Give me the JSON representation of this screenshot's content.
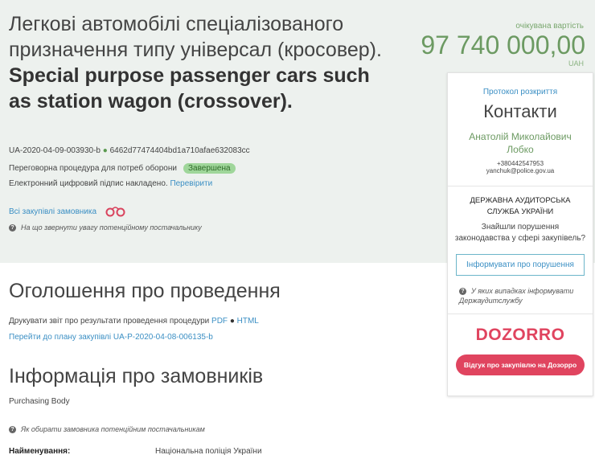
{
  "tender": {
    "title_uk": "Легкові автомобілі спеціалізованого призначення типу універсал (кросовер).",
    "title_en": "Special purpose passenger cars such as station wagon (crossover).",
    "id": "UA-2020-04-09-003930-b",
    "hash": "6462d77474404bd1a710afae632083cc",
    "procedure": "Переговорна процедура для потреб оборони",
    "status": "Завершена",
    "signature_text": "Електронний цифровий підпис накладено.",
    "signature_link": "Перевірити",
    "all_purchases_link": "Всі закупівлі замовника",
    "supplier_hint": "На що звернути увагу потенційному постачальнику"
  },
  "price": {
    "label": "очікувана вартість",
    "amount": "97 740 000,00",
    "currency": "UAH"
  },
  "sidebar": {
    "protocol_link": "Протокол розкриття",
    "contacts_title": "Контакти",
    "contact_name": "Анатолій Миколайович Лобко",
    "phone": "+380442547953",
    "email": "yanchuk@police.gov.ua",
    "audit_title": "ДЕРЖАВНА АУДИТОРСЬКА СЛУЖБА УКРАЇНИ",
    "audit_question": "Знайшли порушення законодавства у сфері закупівель?",
    "report_button": "Інформувати про порушення",
    "audit_hint": "У яких випадках інформувати Держаудитслужбу",
    "dozorro_logo": "DOZORRO",
    "dozorro_button": "Відгук про закупівлю на Дозорро",
    "colors": {
      "dozorro": "#e0445f"
    }
  },
  "announcement": {
    "title": "Оголошення про проведення",
    "print_text": "Друкувати звіт про результати проведення процедури",
    "pdf": "PDF",
    "html": "HTML",
    "plan_link": "Перейти до плану закупівлі UA-P-2020-04-08-006135-b"
  },
  "buyers": {
    "title": "Інформація про замовників",
    "role": "Purchasing Body",
    "hint": "Як обирати замовника потенційним постачальникам",
    "name_label": "Найменування:",
    "name_value": "Національна поліція України"
  }
}
